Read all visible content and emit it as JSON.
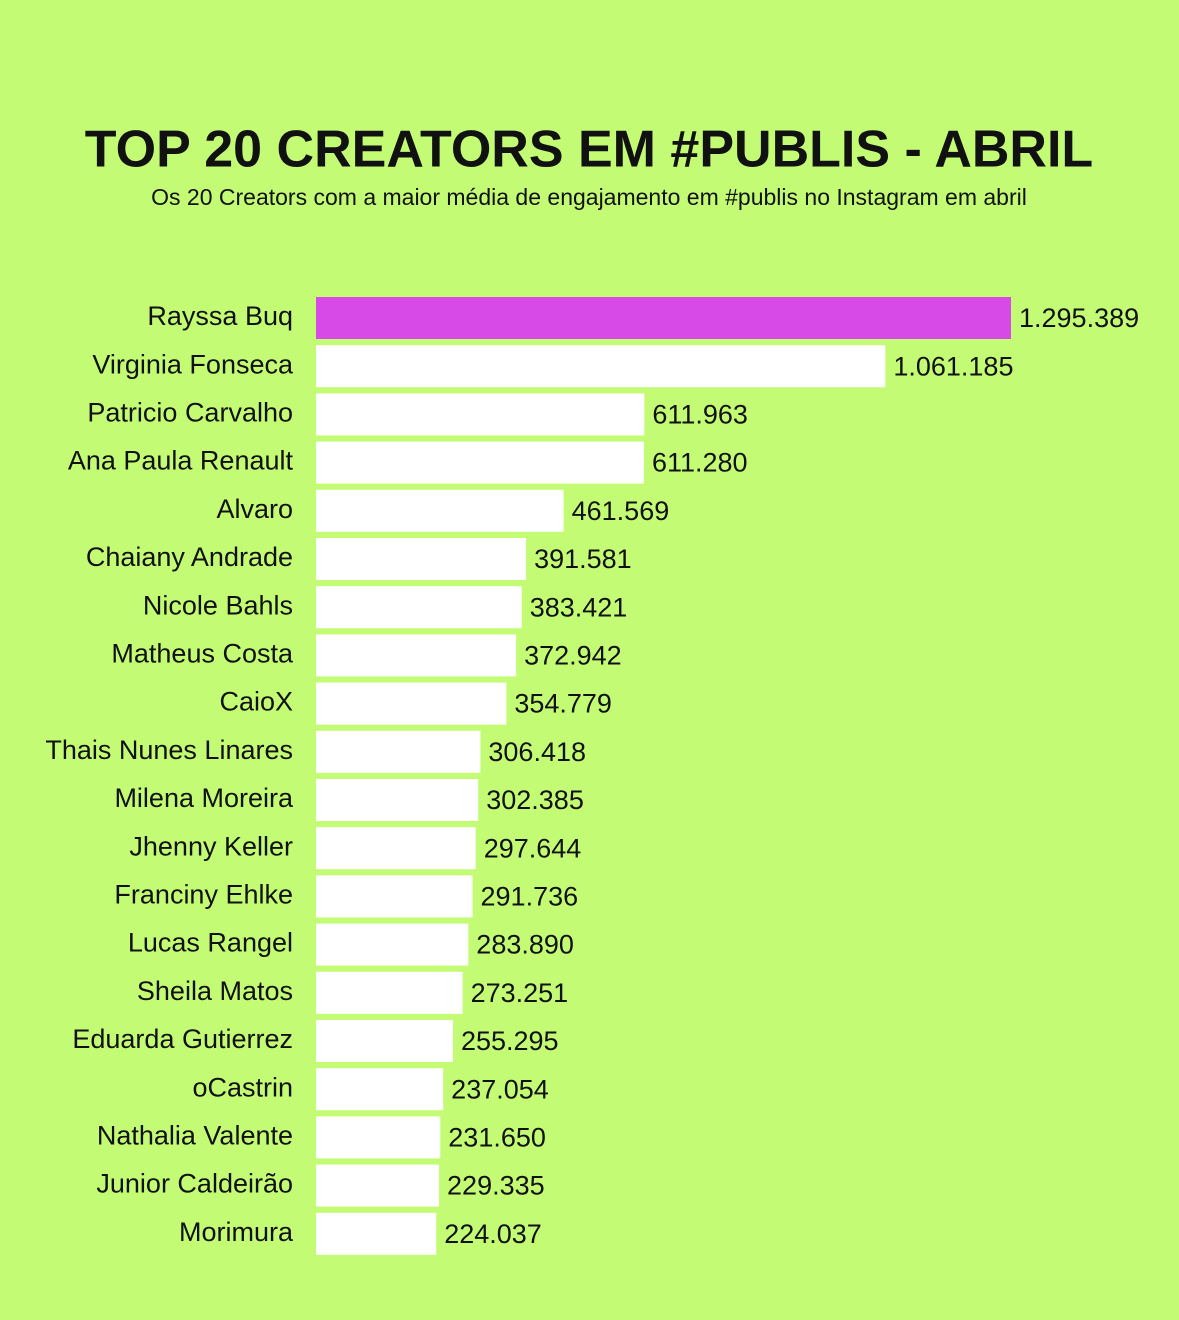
{
  "chart_data": {
    "type": "barh",
    "title": "TOP 20 CREATORS EM #PUBLIS - ABRIL",
    "subtitle": "Os 20 Creators com a maior média de engajamento em #publis no Instagram em abril",
    "categories": [
      "Rayssa Buq",
      "Virginia Fonseca",
      "Patricio Carvalho",
      "Ana Paula Renault",
      "Alvaro",
      "Chaiany Andrade",
      "Nicole Bahls",
      "Matheus Costa",
      "CaioX",
      "Thais Nunes Linares",
      "Milena Moreira",
      "Jhenny Keller",
      "Franciny Ehlke",
      "Lucas Rangel",
      "Sheila Matos",
      "Eduarda Gutierrez",
      "oCastrin",
      "Nathalia Valente",
      "Junior Caldeirão",
      "Morimura"
    ],
    "values": [
      1295389,
      1061185,
      611963,
      611280,
      461569,
      391581,
      383421,
      372942,
      354779,
      306418,
      302385,
      297644,
      291736,
      283890,
      273251,
      255295,
      237054,
      231650,
      229335,
      224037
    ],
    "value_labels": [
      "1.295.389",
      "1.061.185",
      "611.963",
      "611.280",
      "461.569",
      "391.581",
      "383.421",
      "372.942",
      "354.779",
      "306.418",
      "302.385",
      "297.644",
      "291.736",
      "283.890",
      "273.251",
      "255.295",
      "237.054",
      "231.650",
      "229.335",
      "224.037"
    ],
    "colors": [
      "#d84ae8",
      "#ffffff",
      "#ffffff",
      "#ffffff",
      "#ffffff",
      "#ffffff",
      "#ffffff",
      "#ffffff",
      "#ffffff",
      "#ffffff",
      "#ffffff",
      "#ffffff",
      "#ffffff",
      "#ffffff",
      "#ffffff",
      "#ffffff",
      "#ffffff",
      "#ffffff",
      "#ffffff",
      "#ffffff"
    ]
  }
}
